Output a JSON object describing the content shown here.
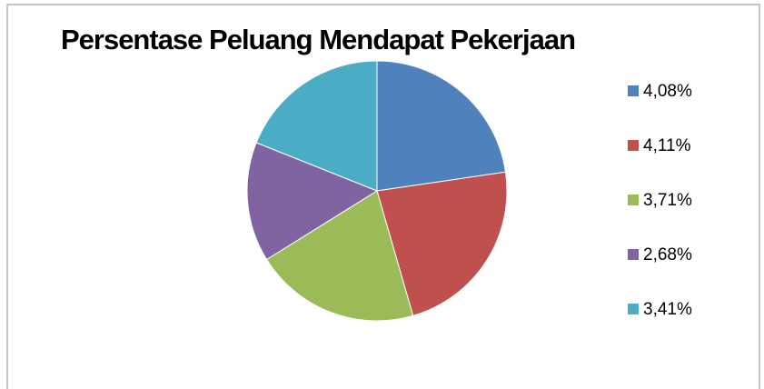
{
  "chart_data": {
    "type": "pie",
    "title": "Persentase Peluang Mendapat Pekerjaan",
    "categories": [
      "4,08%",
      "4,11%",
      "3,71%",
      "2,68%",
      "3,41%"
    ],
    "values": [
      4.08,
      4.11,
      3.71,
      2.68,
      3.41
    ],
    "colors": [
      "#4f81bd",
      "#c0504d",
      "#9bbb59",
      "#8064a2",
      "#4bacc6"
    ],
    "legend": "right"
  }
}
